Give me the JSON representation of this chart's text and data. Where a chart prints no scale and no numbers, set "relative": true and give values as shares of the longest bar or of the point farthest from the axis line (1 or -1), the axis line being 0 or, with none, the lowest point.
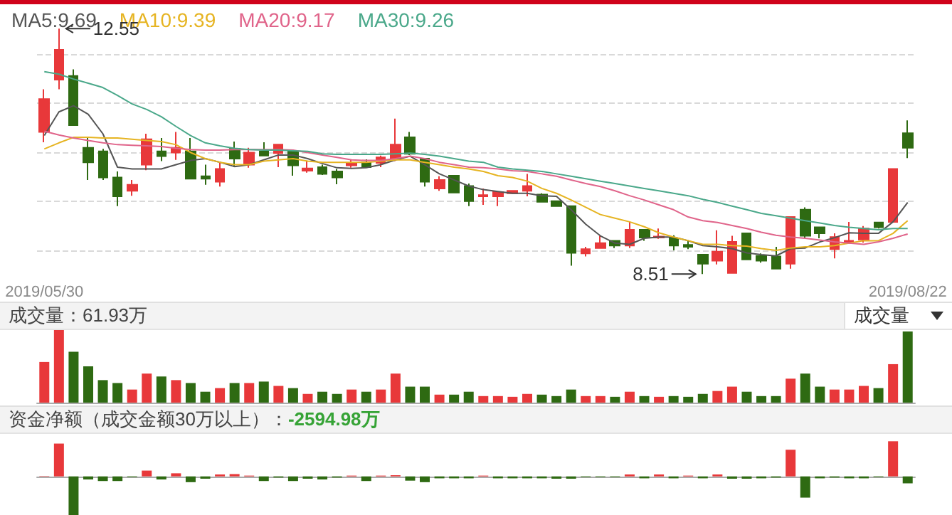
{
  "chart_data": [
    {
      "type": "candlestick",
      "categories": [
        "2019/05/30",
        null,
        null,
        null,
        null,
        null,
        null,
        null,
        null,
        null,
        null,
        null,
        null,
        null,
        null,
        null,
        null,
        null,
        null,
        null,
        null,
        null,
        null,
        null,
        null,
        null,
        null,
        null,
        null,
        null,
        null,
        null,
        null,
        null,
        null,
        null,
        null,
        null,
        null,
        null,
        null,
        null,
        null,
        null,
        null,
        null,
        null,
        null,
        null,
        null,
        null,
        null,
        null,
        null,
        null,
        null,
        null,
        null,
        null,
        "2019/08/22"
      ],
      "ohlc": [
        [
          10.85,
          11.55,
          10.68,
          11.39
        ],
        [
          11.71,
          12.55,
          11.55,
          12.2
        ],
        [
          11.77,
          11.88,
          10.96,
          10.96
        ],
        [
          10.59,
          10.75,
          10.06,
          10.35
        ],
        [
          10.53,
          10.57,
          10.06,
          10.1
        ],
        [
          10.1,
          10.2,
          9.63,
          9.79
        ],
        [
          9.88,
          10.06,
          9.8,
          9.98
        ],
        [
          10.31,
          10.82,
          10.22,
          10.73
        ],
        [
          10.53,
          10.75,
          10.37,
          10.45
        ],
        [
          10.51,
          10.85,
          10.39,
          10.59
        ],
        [
          10.53,
          10.75,
          10.08,
          10.08
        ],
        [
          10.12,
          10.31,
          9.98,
          10.08
        ],
        [
          10.03,
          10.34,
          9.95,
          10.24
        ],
        [
          10.57,
          10.69,
          10.27,
          10.41
        ],
        [
          10.31,
          10.59,
          10.26,
          10.51
        ],
        [
          10.53,
          10.68,
          10.45,
          10.46
        ],
        [
          10.5,
          10.64,
          10.27,
          10.64
        ],
        [
          10.53,
          10.53,
          10.13,
          10.3
        ],
        [
          10.21,
          10.37,
          10.18,
          10.25
        ],
        [
          10.27,
          10.31,
          10.14,
          10.16
        ],
        [
          10.2,
          10.24,
          9.99,
          10.1
        ],
        [
          10.3,
          10.39,
          10.26,
          10.33
        ],
        [
          10.35,
          10.4,
          10.26,
          10.27
        ],
        [
          10.34,
          10.46,
          10.27,
          10.43
        ],
        [
          10.41,
          11.07,
          10.37,
          10.64
        ],
        [
          10.76,
          10.85,
          10.47,
          10.49
        ],
        [
          10.41,
          10.41,
          9.95,
          10.03
        ],
        [
          9.92,
          10.12,
          9.88,
          10.06
        ],
        [
          10.13,
          10.13,
          9.84,
          9.85
        ],
        [
          9.96,
          10.0,
          9.63,
          9.71
        ],
        [
          9.79,
          9.92,
          9.65,
          9.81
        ],
        [
          9.79,
          9.86,
          9.63,
          9.86
        ],
        [
          9.84,
          9.88,
          9.84,
          9.88
        ],
        [
          9.88,
          10.16,
          9.79,
          9.96
        ],
        [
          9.82,
          9.84,
          9.7,
          9.7
        ],
        [
          9.71,
          9.72,
          9.63,
          9.63
        ],
        [
          9.63,
          9.63,
          8.65,
          8.86
        ],
        [
          8.85,
          8.96,
          8.8,
          8.92
        ],
        [
          8.94,
          9.14,
          8.93,
          9.02
        ],
        [
          9.06,
          9.06,
          8.94,
          8.98
        ],
        [
          8.98,
          9.37,
          8.94,
          9.24
        ],
        [
          9.24,
          9.24,
          9.06,
          9.11
        ],
        [
          9.11,
          9.26,
          9.09,
          9.13
        ],
        [
          9.1,
          9.15,
          8.9,
          8.98
        ],
        [
          8.99,
          9.06,
          8.92,
          8.96
        ],
        [
          8.83,
          8.83,
          8.51,
          8.68
        ],
        [
          8.73,
          9.23,
          8.67,
          8.88
        ],
        [
          8.53,
          9.14,
          8.53,
          9.04
        ],
        [
          9.18,
          9.18,
          8.75,
          8.75
        ],
        [
          8.81,
          8.85,
          8.7,
          8.73
        ],
        [
          8.8,
          8.96,
          8.6,
          8.6
        ],
        [
          8.68,
          9.45,
          8.6,
          9.45
        ],
        [
          9.57,
          9.61,
          9.1,
          9.14
        ],
        [
          9.28,
          9.28,
          9.1,
          9.18
        ],
        [
          8.92,
          9.18,
          8.77,
          9.12
        ],
        [
          9.02,
          9.37,
          9.02,
          9.06
        ],
        [
          9.08,
          9.3,
          9.03,
          9.26
        ],
        [
          9.36,
          9.37,
          9.26,
          9.28
        ],
        [
          9.37,
          10.24,
          9.37,
          10.24
        ],
        [
          10.83,
          11.04,
          10.42,
          10.59
        ]
      ],
      "colors": [
        "#e8383a",
        "#e8383a",
        "#2e6a12",
        "#2e6a12",
        "#2e6a12",
        "#2e6a12",
        "#e8383a",
        "#e8383a",
        "#2e6a12",
        "#e8383a",
        "#2e6a12",
        "#2e6a12",
        "#e8383a",
        "#2e6a12",
        "#e8383a",
        "#2e6a12",
        "#e8383a",
        "#2e6a12",
        "#e8383a",
        "#2e6a12",
        "#2e6a12",
        "#e8383a",
        "#2e6a12",
        "#e8383a",
        "#e8383a",
        "#2e6a12",
        "#2e6a12",
        "#e8383a",
        "#2e6a12",
        "#2e6a12",
        "#e8383a",
        "#e8383a",
        "#e8383a",
        "#e8383a",
        "#2e6a12",
        "#2e6a12",
        "#2e6a12",
        "#e8383a",
        "#e8383a",
        "#2e6a12",
        "#e8383a",
        "#2e6a12",
        "#e8383a",
        "#2e6a12",
        "#2e6a12",
        "#2e6a12",
        "#e8383a",
        "#e8383a",
        "#2e6a12",
        "#2e6a12",
        "#2e6a12",
        "#e8383a",
        "#2e6a12",
        "#2e6a12",
        "#e8383a",
        "#e8383a",
        "#e8383a",
        "#2e6a12",
        "#e8383a",
        "#2e6a12"
      ],
      "series": [
        {
          "type": "line",
          "name": "MA5:9.69",
          "color": "#555555",
          "values": [
            10.79,
            11.18,
            11.28,
            11.14,
            10.82,
            10.27,
            10.24,
            10.24,
            10.24,
            10.31,
            10.38,
            10.41,
            10.35,
            10.28,
            10.31,
            10.39,
            10.47,
            10.47,
            10.41,
            10.33,
            10.26,
            10.25,
            10.26,
            10.31,
            10.39,
            10.45,
            10.31,
            10.16,
            10.06,
            9.96,
            9.9,
            9.87,
            9.84,
            9.84,
            9.8,
            9.79,
            9.57,
            9.33,
            9.14,
            9.02,
            9.0,
            9.1,
            9.12,
            9.12,
            9.06,
            8.98,
            8.96,
            8.93,
            8.86,
            8.83,
            8.81,
            8.93,
            8.94,
            9.04,
            9.11,
            9.19,
            9.18,
            9.18,
            9.37,
            9.69
          ]
        },
        {
          "type": "line",
          "name": "MA10:9.39",
          "color": "#e6b422",
          "values": [
            10.57,
            10.67,
            10.76,
            10.76,
            10.75,
            10.75,
            10.73,
            10.71,
            10.69,
            10.64,
            10.51,
            10.41,
            10.35,
            10.31,
            10.31,
            10.37,
            10.39,
            10.41,
            10.37,
            10.35,
            10.35,
            10.35,
            10.35,
            10.37,
            10.39,
            10.39,
            10.35,
            10.31,
            10.27,
            10.24,
            10.2,
            10.13,
            10.1,
            10.04,
            9.92,
            9.84,
            9.73,
            9.61,
            9.49,
            9.43,
            9.37,
            9.29,
            9.19,
            9.12,
            9.06,
            9.0,
            9.0,
            8.98,
            8.97,
            8.93,
            8.9,
            8.94,
            8.96,
            8.96,
            8.98,
            9.02,
            9.06,
            9.06,
            9.18,
            9.39
          ]
        },
        {
          "type": "line",
          "name": "MA20:9.17",
          "color": "#e0648a",
          "values": [
            10.86,
            10.8,
            10.75,
            10.71,
            10.67,
            10.64,
            10.63,
            10.62,
            10.61,
            10.58,
            10.56,
            10.55,
            10.55,
            10.56,
            10.56,
            10.56,
            10.56,
            10.55,
            10.51,
            10.47,
            10.43,
            10.39,
            10.38,
            10.38,
            10.41,
            10.45,
            10.41,
            10.35,
            10.31,
            10.27,
            10.26,
            10.24,
            10.21,
            10.2,
            10.16,
            10.12,
            10.06,
            10.0,
            9.95,
            9.88,
            9.8,
            9.73,
            9.65,
            9.57,
            9.45,
            9.39,
            9.36,
            9.31,
            9.26,
            9.2,
            9.15,
            9.12,
            9.1,
            9.07,
            9.04,
            9.02,
            9.0,
            9.04,
            9.1,
            9.17
          ]
        },
        {
          "type": "line",
          "name": "MA30:9.26",
          "color": "#4aa88a",
          "values": [
            11.84,
            11.8,
            11.72,
            11.65,
            11.58,
            11.45,
            11.31,
            11.22,
            11.1,
            10.94,
            10.79,
            10.67,
            10.62,
            10.58,
            10.56,
            10.55,
            10.55,
            10.54,
            10.53,
            10.49,
            10.48,
            10.48,
            10.48,
            10.48,
            10.49,
            10.5,
            10.48,
            10.45,
            10.41,
            10.37,
            10.35,
            10.27,
            10.24,
            10.22,
            10.2,
            10.16,
            10.12,
            10.08,
            10.04,
            10.0,
            9.96,
            9.92,
            9.88,
            9.84,
            9.8,
            9.74,
            9.69,
            9.63,
            9.57,
            9.51,
            9.47,
            9.43,
            9.39,
            9.35,
            9.31,
            9.28,
            9.26,
            9.24,
            9.26,
            9.26
          ]
        }
      ],
      "yticks": [
        {
          "value": 12.13,
          "label": null
        },
        {
          "value": 11.33,
          "label": null
        },
        {
          "value": 10.51,
          "label": null
        },
        {
          "value": 9.71,
          "label": null
        },
        {
          "value": 8.9,
          "label": null
        }
      ],
      "grid": "y",
      "marker": "none",
      "line_style": "solid",
      "tick_labels": "x",
      "annotations": [
        "12.55",
        "8.51"
      ]
    },
    {
      "type": "bar",
      "title": "成交量：61.93万",
      "relative": true,
      "tick_labels": false,
      "categories": [
        null,
        null,
        null,
        null,
        null,
        null,
        null,
        null,
        null,
        null,
        null,
        null,
        null,
        null,
        null,
        null,
        null,
        null,
        null,
        null,
        null,
        null,
        null,
        null,
        null,
        null,
        null,
        null,
        null,
        null,
        null,
        null,
        null,
        null,
        null,
        null,
        null,
        null,
        null,
        null,
        null,
        null,
        null,
        null,
        null,
        null,
        null,
        null,
        null,
        null,
        null,
        null,
        null,
        null,
        null,
        null,
        null,
        null,
        null,
        null
      ],
      "values": [
        0.56,
        1,
        0.7,
        0.5,
        0.31,
        0.27,
        0.18,
        0.4,
        0.36,
        0.31,
        0.27,
        0.15,
        0.2,
        0.27,
        0.27,
        0.29,
        0.23,
        0.2,
        0.12,
        0.15,
        0.12,
        0.18,
        0.15,
        0.18,
        0.4,
        0.22,
        0.22,
        0.11,
        0.11,
        0.15,
        0.09,
        0.09,
        0.08,
        0.12,
        0.11,
        0.09,
        0.18,
        0.09,
        0.09,
        0.08,
        0.15,
        0.09,
        0.08,
        0.09,
        0.08,
        0.12,
        0.16,
        0.22,
        0.15,
        0.09,
        0.09,
        0.33,
        0.4,
        0.22,
        0.18,
        0.18,
        0.23,
        0.2,
        0.53,
        0.98
      ],
      "colors": [
        "#e8383a",
        "#e8383a",
        "#2e6a12",
        "#2e6a12",
        "#2e6a12",
        "#2e6a12",
        "#e8383a",
        "#e8383a",
        "#2e6a12",
        "#e8383a",
        "#2e6a12",
        "#2e6a12",
        "#e8383a",
        "#2e6a12",
        "#e8383a",
        "#2e6a12",
        "#e8383a",
        "#2e6a12",
        "#e8383a",
        "#2e6a12",
        "#2e6a12",
        "#e8383a",
        "#2e6a12",
        "#e8383a",
        "#e8383a",
        "#2e6a12",
        "#2e6a12",
        "#e8383a",
        "#2e6a12",
        "#2e6a12",
        "#e8383a",
        "#e8383a",
        "#e8383a",
        "#e8383a",
        "#2e6a12",
        "#2e6a12",
        "#2e6a12",
        "#e8383a",
        "#e8383a",
        "#2e6a12",
        "#e8383a",
        "#2e6a12",
        "#e8383a",
        "#2e6a12",
        "#2e6a12",
        "#2e6a12",
        "#e8383a",
        "#e8383a",
        "#2e6a12",
        "#2e6a12",
        "#2e6a12",
        "#e8383a",
        "#2e6a12",
        "#2e6a12",
        "#e8383a",
        "#e8383a",
        "#e8383a",
        "#2e6a12",
        "#e8383a",
        "#2e6a12"
      ],
      "annotations": [
        "成交量"
      ]
    },
    {
      "type": "bar",
      "title": "资金净额（成交金额30万以上）：",
      "subtitle": "-2594.98万",
      "relative": true,
      "tick_labels": false,
      "categories": [
        null,
        null,
        null,
        null,
        null,
        null,
        null,
        null,
        null,
        null,
        null,
        null,
        null,
        null,
        null,
        null,
        null,
        null,
        null,
        null,
        null,
        null,
        null,
        null,
        null,
        null,
        null,
        null,
        null,
        null,
        null,
        null,
        null,
        null,
        null,
        null,
        null,
        null,
        null,
        null,
        null,
        null,
        null,
        null,
        null,
        null,
        null,
        null,
        null,
        null,
        null,
        null,
        null,
        null,
        null,
        null,
        null,
        null,
        null,
        null
      ],
      "values": [
        0.01,
        0.85,
        -1,
        -0.08,
        -0.12,
        -0.12,
        -0.02,
        0.15,
        -0.08,
        0.08,
        -0.15,
        -0.06,
        0.05,
        0.06,
        0.02,
        -0.12,
        -0.03,
        -0.12,
        -0.06,
        -0.08,
        -0.03,
        0.02,
        -0.12,
        0.02,
        0.03,
        -0.11,
        -0.15,
        -0.05,
        -0.05,
        -0.05,
        0.02,
        -0.05,
        -0.05,
        -0.05,
        -0.05,
        -0.06,
        -0.06,
        -0.02,
        -0.02,
        -0.02,
        0.05,
        -0.05,
        0.05,
        -0.05,
        0.02,
        -0.05,
        0.05,
        -0.06,
        -0.06,
        -0.05,
        -0.03,
        0.69,
        -0.55,
        -0.05,
        -0.03,
        -0.05,
        -0.05,
        -0.02,
        0.91,
        -0.18
      ],
      "colors": [
        "#e8383a",
        "#e8383a",
        "#2e6a12",
        "#2e6a12",
        "#2e6a12",
        "#2e6a12",
        "#2e6a12",
        "#e8383a",
        "#2e6a12",
        "#e8383a",
        "#2e6a12",
        "#2e6a12",
        "#e8383a",
        "#e8383a",
        "#e8383a",
        "#2e6a12",
        "#2e6a12",
        "#2e6a12",
        "#2e6a12",
        "#2e6a12",
        "#2e6a12",
        "#e8383a",
        "#2e6a12",
        "#e8383a",
        "#e8383a",
        "#2e6a12",
        "#2e6a12",
        "#2e6a12",
        "#2e6a12",
        "#2e6a12",
        "#e8383a",
        "#2e6a12",
        "#2e6a12",
        "#2e6a12",
        "#2e6a12",
        "#2e6a12",
        "#2e6a12",
        "#2e6a12",
        "#2e6a12",
        "#2e6a12",
        "#e8383a",
        "#2e6a12",
        "#e8383a",
        "#2e6a12",
        "#e8383a",
        "#2e6a12",
        "#e8383a",
        "#2e6a12",
        "#2e6a12",
        "#2e6a12",
        "#2e6a12",
        "#e8383a",
        "#2e6a12",
        "#2e6a12",
        "#2e6a12",
        "#2e6a12",
        "#2e6a12",
        "#2e6a12",
        "#e8383a",
        "#2e6a12"
      ]
    }
  ]
}
